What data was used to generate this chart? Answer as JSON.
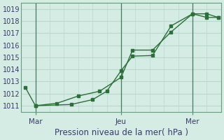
{
  "xlabel": "Pression niveau de la mer( hPa )",
  "bg_color": "#d4ece4",
  "grid_color": "#b8d8cc",
  "line_color": "#2d6e3a",
  "ylim": [
    1010.5,
    1019.5
  ],
  "xlim": [
    0,
    14
  ],
  "yticks": [
    1011,
    1012,
    1013,
    1014,
    1015,
    1016,
    1017,
    1018,
    1019
  ],
  "xtick_positions": [
    1,
    7,
    12
  ],
  "xtick_labels": [
    "Mar",
    "Jeu",
    "Mer"
  ],
  "vline_positions": [
    1,
    7,
    12
  ],
  "series1_x": [
    0.3,
    1.0,
    3.5,
    5.0,
    6.0,
    7.0,
    7.8,
    9.2,
    10.5,
    12.0,
    13.0,
    13.8
  ],
  "series1_y": [
    1012.5,
    1011.0,
    1011.1,
    1011.5,
    1012.2,
    1013.9,
    1015.1,
    1015.15,
    1017.6,
    1018.6,
    1018.6,
    1018.3
  ],
  "series2_x": [
    1.0,
    2.5,
    4.0,
    5.5,
    7.0,
    7.8,
    9.2,
    10.5,
    12.0,
    13.0,
    13.8
  ],
  "series2_y": [
    1011.0,
    1011.2,
    1011.8,
    1012.2,
    1013.35,
    1015.6,
    1015.6,
    1017.1,
    1018.6,
    1018.3,
    1018.3
  ],
  "marker_size": 2.5,
  "font_color": "#3a3a6a",
  "xlabel_fontsize": 8.5,
  "tick_fontsize": 7,
  "xtick_fontsize": 7.5
}
